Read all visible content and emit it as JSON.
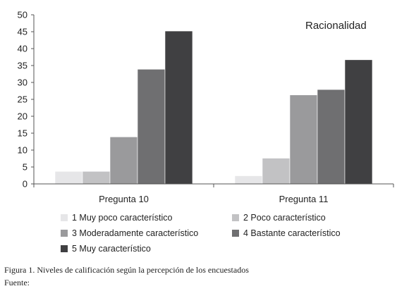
{
  "chart_data": {
    "type": "bar",
    "title": "Racionalidad",
    "categories": [
      "Pregunta 10",
      "Pregunta 11"
    ],
    "ylim": [
      0,
      50
    ],
    "yticks": [
      0,
      5,
      10,
      15,
      20,
      25,
      30,
      35,
      40,
      45,
      50
    ],
    "grid": false,
    "legend_position": "bottom",
    "series": [
      {
        "name": "1 Muy poco característico",
        "color": "#e6e6e8",
        "values": [
          3.7,
          2.4
        ]
      },
      {
        "name": "2 Poco característico",
        "color": "#c2c2c4",
        "values": [
          3.7,
          7.6
        ]
      },
      {
        "name": "3 Moderadamente característico",
        "color": "#9a9a9c",
        "values": [
          13.9,
          26.3
        ]
      },
      {
        "name": "4 Bastante característico",
        "color": "#6f6f71",
        "values": [
          33.9,
          27.9
        ]
      },
      {
        "name": "5 Muy característico",
        "color": "#404042",
        "values": [
          45.2,
          36.7
        ]
      }
    ]
  },
  "caption": {
    "figure": "Figura 1. Niveles de calificación según la percepción de los encuestados",
    "source": "Fuente:"
  }
}
